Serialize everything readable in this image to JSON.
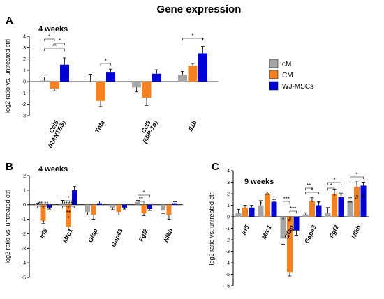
{
  "figure_title": "Gene expression",
  "colors": {
    "cM": "#a6a6a6",
    "CM": "#f58220",
    "WJ-MSCs": "#0000d6"
  },
  "legend": [
    "cM",
    "CM",
    "WJ-MSCs"
  ],
  "chart_data": [
    {
      "panel": "A",
      "type": "bar",
      "title": "4 weeks",
      "ylabel": "log2 ratio vs. untreated ctrl",
      "ylim": [
        -3,
        4
      ],
      "yticks": [
        -3,
        -2,
        -1,
        0,
        1,
        2,
        3,
        4
      ],
      "categories": [
        [
          "Ccl5",
          "(RANTES)"
        ],
        [
          "Tnfa"
        ],
        [
          "Ccl3",
          "(MIP-1α)"
        ],
        [
          "Il1b"
        ]
      ],
      "series": [
        {
          "name": "cM",
          "values": [
            0.1,
            0.0,
            -0.5,
            0.6
          ],
          "errors": [
            0.3,
            0.65,
            0.4,
            0.3
          ]
        },
        {
          "name": "CM",
          "values": [
            -0.6,
            -1.7,
            -1.4,
            1.4
          ],
          "errors": [
            0.2,
            0.5,
            0.7,
            0.2
          ]
        },
        {
          "name": "WJ-MSCs",
          "values": [
            1.5,
            0.8,
            0.7,
            2.5
          ],
          "errors": [
            0.6,
            0.3,
            0.35,
            0.6
          ]
        }
      ],
      "significance": [
        {
          "category": 0,
          "text": "**"
        },
        {
          "category": 0,
          "text": "*"
        },
        {
          "category": 0,
          "text": "*"
        },
        {
          "category": 1,
          "text": "*"
        },
        {
          "category": 3,
          "text": "*"
        },
        {
          "category": 3,
          "text": "*"
        }
      ]
    },
    {
      "panel": "B",
      "type": "bar",
      "title": "4 weeks",
      "ylabel": "log2 ratio vs. untreated ctrl",
      "ylim": [
        -5,
        2
      ],
      "yticks": [
        -5,
        -4,
        -3,
        -2,
        -1,
        0,
        1,
        2
      ],
      "categories": [
        "Irf5",
        "Mrc1",
        "Gfap",
        "Gap43",
        "Fgf2",
        "Nfkb"
      ],
      "series": [
        {
          "name": "cM",
          "values": [
            0.0,
            0.1,
            -0.5,
            -0.2,
            0.2,
            -0.4
          ],
          "errors": [
            0.1,
            0.2,
            0.2,
            0.15,
            0.1,
            0.2
          ]
        },
        {
          "name": "CM",
          "values": [
            -1.1,
            -1.5,
            -0.7,
            -0.5,
            -0.6,
            -0.7
          ],
          "errors": [
            0.2,
            0.3,
            0.3,
            0.2,
            0.15,
            0.3
          ]
        },
        {
          "name": "WJ-MSCs",
          "values": [
            -0.2,
            1.0,
            0.1,
            -0.2,
            -0.3,
            0.1
          ],
          "errors": [
            0.1,
            0.25,
            0.15,
            0.1,
            0.1,
            0.1
          ]
        }
      ],
      "significance": [
        {
          "category": 0,
          "text": "**"
        },
        {
          "category": 0,
          "text": "**"
        },
        {
          "category": 0,
          "text": "*"
        },
        {
          "category": 1,
          "text": "*"
        },
        {
          "category": 1,
          "text": "**"
        },
        {
          "category": 1,
          "text": "***"
        },
        {
          "category": 1,
          "text": "**"
        },
        {
          "category": 1,
          "text": "*"
        },
        {
          "category": 4,
          "text": "*"
        },
        {
          "category": 4,
          "text": "**"
        }
      ]
    },
    {
      "panel": "C",
      "type": "bar",
      "title": "9 weeks",
      "ylabel": "log2 ratio vs. untreated ctrl",
      "ylim": [
        -6,
        4
      ],
      "yticks": [
        -6,
        -5,
        -4,
        -3,
        -2,
        -1,
        0,
        1,
        2,
        3,
        4
      ],
      "categories": [
        "Irf5",
        "Mrc1",
        "Gfap",
        "Gap43",
        "Fgf2",
        "Nfkb"
      ],
      "series": [
        {
          "name": "cM",
          "values": [
            0.3,
            1.0,
            -1.9,
            0.2,
            0.3,
            1.4
          ],
          "errors": [
            0.35,
            0.4,
            0.5,
            0.15,
            0.5,
            0.25
          ]
        },
        {
          "name": "CM",
          "values": [
            0.8,
            2.0,
            -4.8,
            1.4,
            2.0,
            2.6
          ],
          "errors": [
            0.2,
            0.15,
            0.35,
            0.25,
            0.4,
            0.5
          ]
        },
        {
          "name": "WJ-MSCs",
          "values": [
            0.8,
            1.3,
            -1.2,
            1.0,
            1.7,
            2.7
          ],
          "errors": [
            0.2,
            0.2,
            0.4,
            0.3,
            0.35,
            0.3
          ]
        }
      ],
      "significance": [
        {
          "category": 1,
          "text": "*"
        },
        {
          "category": 1,
          "text": "**"
        },
        {
          "category": 1,
          "text": "*"
        },
        {
          "category": 2,
          "text": "*"
        },
        {
          "category": 2,
          "text": "#"
        },
        {
          "category": 2,
          "text": "***"
        },
        {
          "category": 2,
          "text": "***"
        },
        {
          "category": 3,
          "text": "**"
        },
        {
          "category": 3,
          "text": "*"
        },
        {
          "category": 3,
          "text": "*"
        },
        {
          "category": 3,
          "text": "*"
        },
        {
          "category": 4,
          "text": "*"
        },
        {
          "category": 4,
          "text": "*"
        },
        {
          "category": 4,
          "text": "*"
        },
        {
          "category": 4,
          "text": "*"
        },
        {
          "category": 5,
          "text": "*"
        },
        {
          "category": 5,
          "text": "**"
        },
        {
          "category": 5,
          "text": "#"
        },
        {
          "category": 5,
          "text": "#"
        }
      ]
    }
  ]
}
